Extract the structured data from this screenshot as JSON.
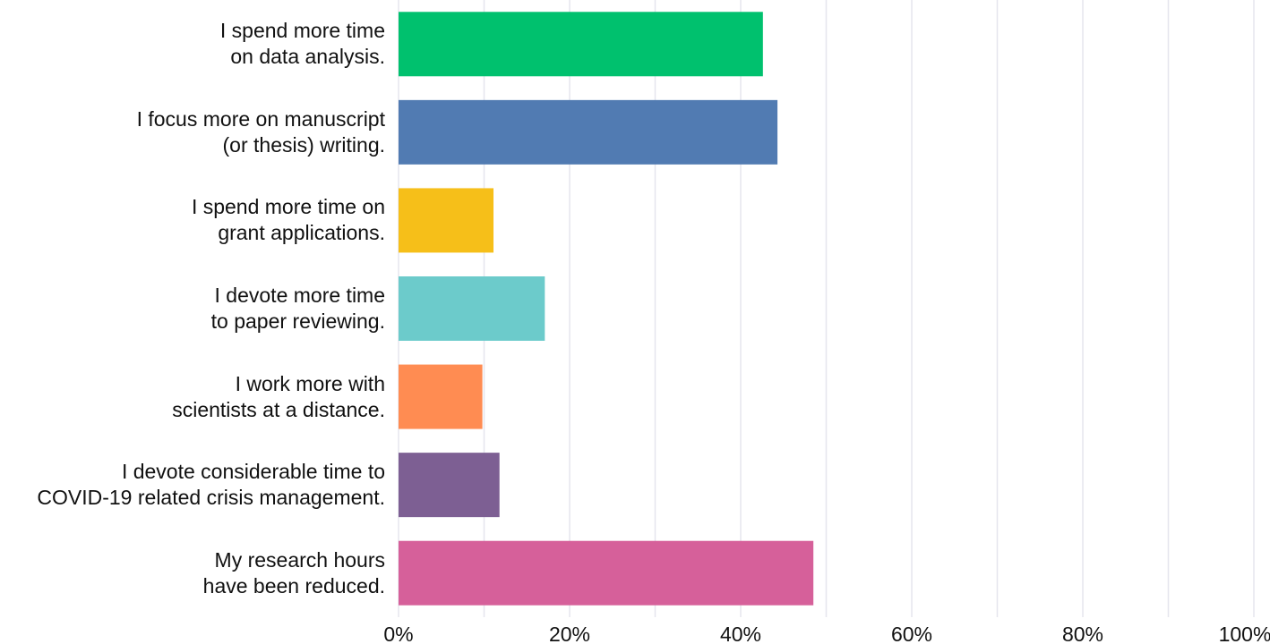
{
  "chart_data": {
    "type": "bar",
    "orientation": "horizontal",
    "categories": [
      "I spend more time\non data analysis.",
      "I focus more on manuscript\n(or thesis) writing.",
      "I spend more time on\ngrant applications.",
      "I devote more time\nto paper reviewing.",
      "I work more with\nscientists at a distance.",
      "I devote considerable time to\nCOVID-19 related crisis management.",
      "My research hours\nhave been reduced."
    ],
    "values": [
      42.6,
      44.3,
      11.1,
      17.1,
      9.8,
      11.8,
      48.5
    ],
    "colors": [
      "#00c16e",
      "#517bb2",
      "#f6bf19",
      "#6ccbcb",
      "#ff8c52",
      "#7d5f93",
      "#d6609a"
    ],
    "xlim": [
      0,
      100
    ],
    "xticks": [
      {
        "value": 0,
        "label": "0%"
      },
      {
        "value": 20,
        "label": "20%"
      },
      {
        "value": 40,
        "label": "40%"
      },
      {
        "value": 60,
        "label": "60%"
      },
      {
        "value": 80,
        "label": "80%"
      },
      {
        "value": 100,
        "label": "100%"
      }
    ],
    "minor_grid": [
      10,
      30,
      50,
      70,
      90
    ],
    "grid": true
  }
}
